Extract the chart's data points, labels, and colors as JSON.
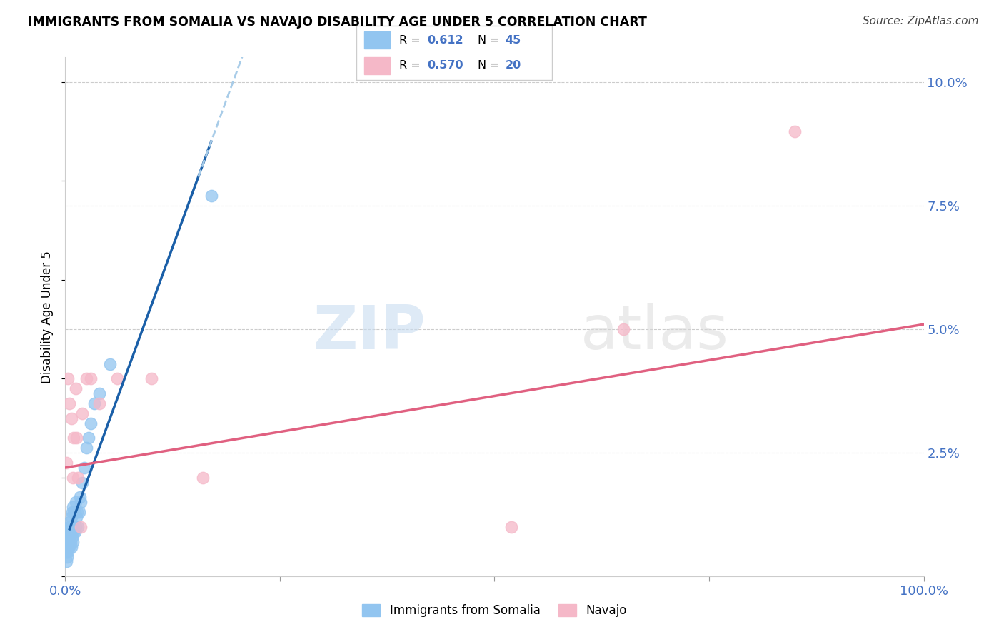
{
  "title": "IMMIGRANTS FROM SOMALIA VS NAVAJO DISABILITY AGE UNDER 5 CORRELATION CHART",
  "source": "Source: ZipAtlas.com",
  "ylabel": "Disability Age Under 5",
  "xlim": [
    0,
    1.0
  ],
  "ylim": [
    0,
    0.105
  ],
  "xticks": [
    0,
    0.25,
    0.5,
    0.75,
    1.0
  ],
  "xtick_labels": [
    "0.0%",
    "",
    "",
    "",
    "100.0%"
  ],
  "yticks_right": [
    0,
    0.025,
    0.05,
    0.075,
    0.1
  ],
  "ytick_labels_right": [
    "",
    "2.5%",
    "5.0%",
    "7.5%",
    "10.0%"
  ],
  "legend_R1": "0.612",
  "legend_N1": "45",
  "legend_R2": "0.570",
  "legend_N2": "20",
  "legend_group1": "Immigrants from Somalia",
  "legend_group2": "Navajo",
  "blue_color": "#92C5F0",
  "pink_color": "#F5B8C8",
  "trendline_blue_color": "#1A5FA8",
  "trendline_pink_color": "#E06080",
  "trendline_blue_dashed_color": "#A8CCE8",
  "watermark_zip": "ZIP",
  "watermark_atlas": "atlas",
  "blue_scatter_x": [
    0.001,
    0.001,
    0.002,
    0.002,
    0.002,
    0.003,
    0.003,
    0.003,
    0.004,
    0.004,
    0.004,
    0.005,
    0.005,
    0.005,
    0.006,
    0.006,
    0.007,
    0.007,
    0.007,
    0.008,
    0.008,
    0.009,
    0.009,
    0.009,
    0.01,
    0.01,
    0.011,
    0.011,
    0.012,
    0.012,
    0.013,
    0.014,
    0.015,
    0.016,
    0.017,
    0.018,
    0.02,
    0.022,
    0.025,
    0.027,
    0.03,
    0.034,
    0.04,
    0.052,
    0.17
  ],
  "blue_scatter_y": [
    0.003,
    0.005,
    0.004,
    0.006,
    0.007,
    0.005,
    0.007,
    0.009,
    0.006,
    0.008,
    0.01,
    0.006,
    0.008,
    0.011,
    0.007,
    0.01,
    0.006,
    0.009,
    0.012,
    0.008,
    0.013,
    0.007,
    0.01,
    0.014,
    0.009,
    0.013,
    0.009,
    0.013,
    0.01,
    0.015,
    0.012,
    0.013,
    0.01,
    0.013,
    0.016,
    0.015,
    0.019,
    0.022,
    0.026,
    0.028,
    0.031,
    0.035,
    0.037,
    0.043,
    0.077
  ],
  "pink_scatter_x": [
    0.001,
    0.003,
    0.005,
    0.007,
    0.009,
    0.01,
    0.012,
    0.013,
    0.015,
    0.018,
    0.02,
    0.025,
    0.03,
    0.04,
    0.06,
    0.1,
    0.16,
    0.52,
    0.65,
    0.85
  ],
  "pink_scatter_y": [
    0.023,
    0.04,
    0.035,
    0.032,
    0.02,
    0.028,
    0.038,
    0.028,
    0.02,
    0.01,
    0.033,
    0.04,
    0.04,
    0.035,
    0.04,
    0.04,
    0.02,
    0.01,
    0.05,
    0.09
  ],
  "pink_trendline_x0": 0.0,
  "pink_trendline_y0": 0.022,
  "pink_trendline_x1": 1.0,
  "pink_trendline_y1": 0.051
}
